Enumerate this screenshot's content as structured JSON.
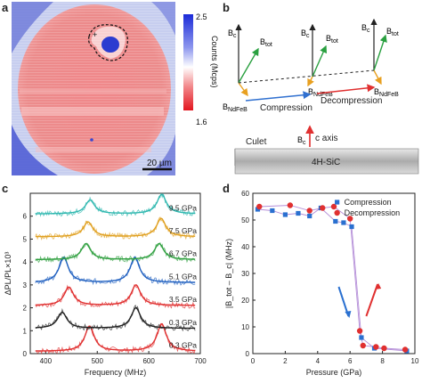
{
  "panel_a": {
    "letter": "a",
    "colorbar_max": "2.5",
    "colorbar_min": "1.6",
    "colorbar_label": "Counts (Mcps)",
    "scalebar_label": "20 µm",
    "colors": {
      "high": "#2030c8",
      "mid": "#ffffff",
      "low": "#e0202a"
    }
  },
  "panel_b": {
    "letter": "b",
    "labels": {
      "bc": "B",
      "bc_sub": "c",
      "btot": "B",
      "btot_sub": "tot",
      "bndfeb": "B",
      "bndfeb_sub": "NdFeB",
      "compression": "Compression",
      "decompression": "Decompression",
      "culet": "Culet",
      "c_axis": "c axis",
      "substrate": "4H-SiC"
    },
    "colors": {
      "bc": "#222222",
      "btot": "#2aa040",
      "bndfeb": "#e8a020",
      "compression": "#3070d0",
      "decompression": "#e03030",
      "c_axis": "#e03030"
    }
  },
  "panel_c": {
    "letter": "c",
    "chart_data": {
      "type": "line",
      "xlabel": "Frequency (MHz)",
      "ylabel": "ΔPL/PL×10³",
      "xlim": [
        370,
        700
      ],
      "ylim": [
        0,
        7
      ],
      "xticks": [
        400,
        500,
        600,
        700
      ],
      "yticks": [
        0,
        1,
        2,
        3,
        4,
        5,
        6
      ],
      "series": [
        {
          "name": "0.3 GPa",
          "offset": 0,
          "color": "#e03030",
          "peaks": [
            [
              485,
              1.1
            ],
            [
              625,
              1.2
            ]
          ]
        },
        {
          "name": "0.3 GPa",
          "offset": 1,
          "color": "#222222",
          "peaks": [
            [
              432,
              0.7
            ],
            [
              575,
              0.9
            ]
          ]
        },
        {
          "name": "3.5 GPa",
          "offset": 2,
          "color": "#e03030",
          "peaks": [
            [
              445,
              0.8
            ],
            [
              575,
              0.9
            ]
          ]
        },
        {
          "name": "5.1 GPa",
          "offset": 3,
          "color": "#2060c0",
          "peaks": [
            [
              435,
              1.1
            ],
            [
              573,
              1.1
            ]
          ]
        },
        {
          "name": "6.7 GPa",
          "offset": 4,
          "color": "#30a040",
          "peaks": [
            [
              478,
              0.7
            ],
            [
              620,
              0.7
            ]
          ]
        },
        {
          "name": "7.5 GPa",
          "offset": 5,
          "color": "#e0a020",
          "peaks": [
            [
              482,
              0.65
            ],
            [
              624,
              0.8
            ]
          ]
        },
        {
          "name": "9.5 GPa",
          "offset": 6,
          "color": "#30b8b0",
          "peaks": [
            [
              486,
              0.6
            ],
            [
              625,
              0.85
            ]
          ]
        }
      ]
    }
  },
  "panel_d": {
    "letter": "d",
    "chart_data": {
      "type": "scatter",
      "xlabel": "Pressure (GPa)",
      "ylabel": "|B_tot – B_c| (MHz)",
      "xlim": [
        0,
        10
      ],
      "ylim": [
        0,
        60
      ],
      "xticks": [
        0,
        2,
        4,
        6,
        8,
        10
      ],
      "yticks": [
        0,
        10,
        20,
        30,
        40,
        50,
        60
      ],
      "legend_position": "top-right",
      "series": [
        {
          "name": "Compression",
          "color": "#2a70d0",
          "marker": "square",
          "points": [
            [
              0.3,
              54
            ],
            [
              1.2,
              53.5
            ],
            [
              2.0,
              52
            ],
            [
              2.8,
              52.5
            ],
            [
              3.5,
              51.5
            ],
            [
              4.2,
              54.5
            ],
            [
              5.1,
              49.5
            ],
            [
              5.6,
              49
            ],
            [
              6.1,
              47.5
            ],
            [
              6.7,
              6
            ],
            [
              7.5,
              2
            ],
            [
              9.5,
              1
            ]
          ]
        },
        {
          "name": "Decompression",
          "color": "#e03030",
          "marker": "circle",
          "points": [
            [
              0.4,
              55
            ],
            [
              2.3,
              55.5
            ],
            [
              3.5,
              53.5
            ],
            [
              4.3,
              54.5
            ],
            [
              5.0,
              55
            ],
            [
              6.0,
              50.5
            ],
            [
              6.6,
              8.5
            ],
            [
              6.8,
              3
            ],
            [
              7.6,
              2.5
            ],
            [
              8.1,
              2
            ],
            [
              9.4,
              1.5
            ]
          ]
        }
      ],
      "arrows": [
        {
          "color": "#2a70d0",
          "direction": "down"
        },
        {
          "color": "#e03030",
          "direction": "up"
        }
      ]
    }
  }
}
